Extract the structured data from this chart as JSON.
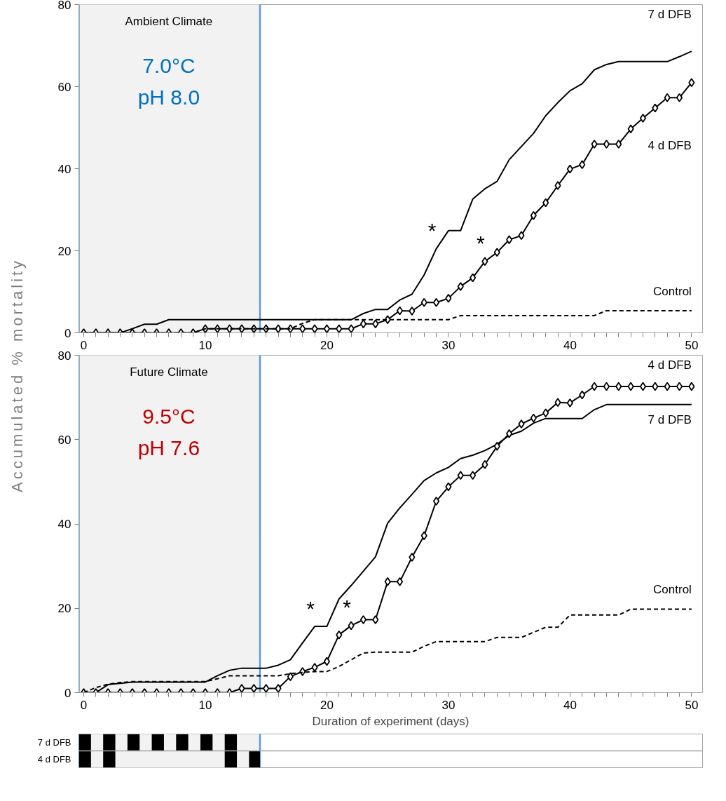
{
  "chart_data": [
    {
      "type": "line",
      "ylabel": "Accumulated % mortality",
      "xlim": [
        -0.4,
        50.9
      ],
      "ylim": [
        0,
        80
      ],
      "yticks": [
        0,
        20,
        40,
        60,
        80
      ],
      "xticks": [
        0,
        {
          "value": 1,
          "label": null
        },
        {
          "value": 2,
          "label": null
        },
        {
          "value": 3,
          "label": null
        },
        {
          "value": 4,
          "label": null
        },
        {
          "value": 5,
          "label": null
        },
        {
          "value": 6,
          "label": null
        },
        {
          "value": 7,
          "label": null
        },
        {
          "value": 8,
          "label": null
        },
        {
          "value": 9,
          "label": null
        },
        10,
        {
          "value": 11,
          "label": null
        },
        {
          "value": 12,
          "label": null
        },
        {
          "value": 13,
          "label": null
        },
        {
          "value": 14,
          "label": null
        },
        {
          "value": 15,
          "label": null
        },
        {
          "value": 16,
          "label": null
        },
        {
          "value": 17,
          "label": null
        },
        {
          "value": 18,
          "label": null
        },
        {
          "value": 19,
          "label": null
        },
        20,
        {
          "value": 21,
          "label": null
        },
        {
          "value": 22,
          "label": null
        },
        {
          "value": 23,
          "label": null
        },
        {
          "value": 24,
          "label": null
        },
        {
          "value": 25,
          "label": null
        },
        {
          "value": 26,
          "label": null
        },
        {
          "value": 27,
          "label": null
        },
        {
          "value": 28,
          "label": null
        },
        {
          "value": 29,
          "label": null
        },
        30,
        {
          "value": 31,
          "label": null
        },
        {
          "value": 32,
          "label": null
        },
        {
          "value": 33,
          "label": null
        },
        {
          "value": 34,
          "label": null
        },
        {
          "value": 35,
          "label": null
        },
        {
          "value": 36,
          "label": null
        },
        {
          "value": 37,
          "label": null
        },
        {
          "value": 38,
          "label": null
        },
        {
          "value": 39,
          "label": null
        },
        40,
        {
          "value": 41,
          "label": null
        },
        {
          "value": 42,
          "label": null
        },
        {
          "value": 43,
          "label": null
        },
        {
          "value": 44,
          "label": null
        },
        {
          "value": 45,
          "label": null
        },
        {
          "value": 46,
          "label": null
        },
        {
          "value": 47,
          "label": null
        },
        {
          "value": 48,
          "label": null
        },
        {
          "value": 49,
          "label": null
        },
        50
      ],
      "x": [
        0,
        1,
        2,
        3,
        4,
        5,
        6,
        7,
        8,
        9,
        10,
        11,
        12,
        13,
        14,
        15,
        16,
        17,
        18,
        19,
        20,
        21,
        22,
        23,
        24,
        25,
        26,
        27,
        28,
        29,
        30,
        31,
        32,
        33,
        34,
        35,
        36,
        37,
        38,
        39,
        40,
        41,
        42,
        43,
        44,
        45,
        46,
        47,
        48,
        49,
        50
      ],
      "grid": false,
      "bands": [
        {
          "axis": "x",
          "from": -0.4,
          "to": 14.5,
          "color": "#f2f2f2"
        }
      ],
      "annotations": [
        "Ambient Climate",
        "7.0°C",
        "pH 8.0",
        "*",
        "*"
      ],
      "series": [
        {
          "name": "7 d DFB",
          "color": "#000000",
          "marker": "none",
          "line_style": "solid",
          "values": [
            0,
            0,
            0,
            0,
            1.0,
            2.1,
            2.1,
            3.2,
            3.2,
            3.2,
            3.2,
            3.2,
            3.2,
            3.2,
            3.2,
            3.2,
            3.2,
            3.2,
            3.2,
            3.2,
            3.2,
            3.2,
            3.2,
            4.7,
            5.7,
            5.7,
            8.0,
            9.4,
            14.1,
            20.5,
            24.9,
            24.9,
            32.6,
            35.1,
            36.9,
            42.2,
            45.4,
            48.6,
            52.9,
            56.1,
            59.0,
            60.7,
            64.1,
            65.4,
            66.1,
            66.1,
            66.1,
            66.1,
            66.1,
            67.3,
            68.6
          ]
        },
        {
          "name": "4 d DFB",
          "color": "#000000",
          "marker": "diamond",
          "line_style": "solid",
          "values": [
            0,
            0,
            0,
            0,
            0,
            0,
            0,
            0,
            0,
            0,
            1,
            1,
            1,
            1,
            1,
            1,
            1,
            1,
            1,
            1,
            1,
            1,
            1,
            2.2,
            2.2,
            3.2,
            5.4,
            5.3,
            7.4,
            7.4,
            8.4,
            11.3,
            13.4,
            17.4,
            19.6,
            22.7,
            23.7,
            28.6,
            31.7,
            35.9,
            39.9,
            41.0,
            46.0,
            46.0,
            46.0,
            49.7,
            52.3,
            54.8,
            57.3,
            57.3,
            61.0
          ]
        },
        {
          "name": "Control",
          "color": "#000000",
          "marker": "none",
          "line_style": "dashed",
          "values": [
            0,
            0,
            0,
            0,
            0,
            0,
            0,
            0,
            0,
            0,
            1,
            1,
            1,
            1,
            1,
            1,
            1,
            1,
            2.3,
            3.2,
            3.2,
            3.2,
            3.2,
            3.2,
            3.2,
            3.2,
            3.2,
            3.2,
            3.2,
            3.2,
            3.2,
            4.2,
            4.2,
            4.2,
            4.2,
            4.2,
            4.2,
            4.2,
            4.2,
            4.2,
            4.2,
            4.2,
            4.2,
            5.4,
            5.4,
            5.4,
            5.4,
            5.4,
            5.4,
            5.4,
            5.4
          ]
        }
      ]
    },
    {
      "type": "line",
      "xlabel": "Duration of experiment (days)",
      "xlim": [
        -0.4,
        50.9
      ],
      "ylim": [
        0,
        80
      ],
      "yticks": [
        0,
        20,
        40,
        60,
        80
      ],
      "xticks": [
        0,
        {
          "value": 1,
          "label": null
        },
        {
          "value": 2,
          "label": null
        },
        {
          "value": 3,
          "label": null
        },
        {
          "value": 4,
          "label": null
        },
        {
          "value": 5,
          "label": null
        },
        {
          "value": 6,
          "label": null
        },
        {
          "value": 7,
          "label": null
        },
        {
          "value": 8,
          "label": null
        },
        {
          "value": 9,
          "label": null
        },
        10,
        {
          "value": 11,
          "label": null
        },
        {
          "value": 12,
          "label": null
        },
        {
          "value": 13,
          "label": null
        },
        {
          "value": 14,
          "label": null
        },
        {
          "value": 15,
          "label": null
        },
        {
          "value": 16,
          "label": null
        },
        {
          "value": 17,
          "label": null
        },
        {
          "value": 18,
          "label": null
        },
        {
          "value": 19,
          "label": null
        },
        20,
        {
          "value": 21,
          "label": null
        },
        {
          "value": 22,
          "label": null
        },
        {
          "value": 23,
          "label": null
        },
        {
          "value": 24,
          "label": null
        },
        {
          "value": 25,
          "label": null
        },
        {
          "value": 26,
          "label": null
        },
        {
          "value": 27,
          "label": null
        },
        {
          "value": 28,
          "label": null
        },
        {
          "value": 29,
          "label": null
        },
        30,
        {
          "value": 31,
          "label": null
        },
        {
          "value": 32,
          "label": null
        },
        {
          "value": 33,
          "label": null
        },
        {
          "value": 34,
          "label": null
        },
        {
          "value": 35,
          "label": null
        },
        {
          "value": 36,
          "label": null
        },
        {
          "value": 37,
          "label": null
        },
        {
          "value": 38,
          "label": null
        },
        {
          "value": 39,
          "label": null
        },
        40,
        {
          "value": 41,
          "label": null
        },
        {
          "value": 42,
          "label": null
        },
        {
          "value": 43,
          "label": null
        },
        {
          "value": 44,
          "label": null
        },
        {
          "value": 45,
          "label": null
        },
        {
          "value": 46,
          "label": null
        },
        {
          "value": 47,
          "label": null
        },
        {
          "value": 48,
          "label": null
        },
        {
          "value": 49,
          "label": null
        },
        50
      ],
      "x": [
        0,
        1,
        2,
        3,
        4,
        5,
        6,
        7,
        8,
        9,
        10,
        11,
        12,
        13,
        14,
        15,
        16,
        17,
        18,
        19,
        20,
        21,
        22,
        23,
        24,
        25,
        26,
        27,
        28,
        29,
        30,
        31,
        32,
        33,
        34,
        35,
        36,
        37,
        38,
        39,
        40,
        41,
        42,
        43,
        44,
        45,
        46,
        47,
        48,
        49,
        50
      ],
      "grid": false,
      "bands": [
        {
          "axis": "x",
          "from": -0.4,
          "to": 14.5,
          "color": "#f2f2f2"
        }
      ],
      "annotations": [
        "Future Climate",
        "9.5°C",
        "pH 7.6",
        "*",
        "*"
      ],
      "series": [
        {
          "name": "7 d DFB",
          "color": "#000000",
          "marker": "none",
          "line_style": "solid",
          "values": [
            0,
            0,
            1.9,
            2.2,
            2.5,
            2.5,
            2.5,
            2.5,
            2.5,
            2.5,
            2.5,
            4.0,
            5.3,
            5.8,
            5.8,
            5.8,
            6.5,
            7.8,
            11.8,
            15.7,
            15.7,
            22.2,
            25.4,
            28.8,
            32.2,
            40.2,
            43.8,
            47.0,
            50.3,
            52.1,
            53.4,
            55.5,
            56.3,
            57.4,
            58.9,
            61.0,
            62.0,
            63.9,
            65.0,
            65.0,
            65.0,
            65.0,
            67.1,
            68.3,
            68.3,
            68.3,
            68.3,
            68.3,
            68.3,
            68.3,
            68.3
          ]
        },
        {
          "name": "4 d DFB",
          "color": "#000000",
          "marker": "diamond",
          "line_style": "solid",
          "values": [
            0,
            0,
            0,
            0,
            0,
            0,
            0,
            0,
            0,
            0,
            0,
            0,
            0,
            1.0,
            1.0,
            1.0,
            1.0,
            3.8,
            5.0,
            6.0,
            7.4,
            13.7,
            15.9,
            17.3,
            17.3,
            26.3,
            26.3,
            32.1,
            37.2,
            45.4,
            48.8,
            51.5,
            51.5,
            54.1,
            58.4,
            61.4,
            63.7,
            65.1,
            66.3,
            68.8,
            68.7,
            70.6,
            72.6,
            72.6,
            72.6,
            72.6,
            72.6,
            72.6,
            72.6,
            72.6,
            72.6
          ]
        },
        {
          "name": "Control",
          "color": "#000000",
          "marker": "none",
          "line_style": "dashed",
          "values": [
            0,
            1.2,
            2.0,
            2.4,
            2.6,
            2.6,
            2.6,
            2.6,
            2.6,
            2.6,
            2.6,
            3.3,
            4.0,
            4.0,
            4.0,
            4.0,
            4.0,
            4.5,
            4.8,
            5.0,
            5.0,
            6.2,
            7.8,
            9.4,
            9.6,
            9.6,
            9.6,
            9.6,
            11.0,
            12.1,
            12.1,
            12.1,
            12.1,
            12.1,
            13.1,
            13.1,
            13.1,
            14.3,
            15.5,
            15.5,
            18.4,
            18.4,
            18.4,
            18.4,
            18.4,
            19.8,
            19.8,
            19.8,
            19.8,
            19.8,
            19.8
          ]
        }
      ]
    },
    {
      "type": "bar",
      "orientation": "horizontal",
      "categories": [
        "7 d DFB",
        "4 d DFB"
      ],
      "xlim": [
        -0.4,
        50.9
      ],
      "tick_labels": "y",
      "grid": false,
      "bands": [
        {
          "axis": "x",
          "from": -0.4,
          "to": 14.5,
          "color": "#f2f2f2"
        }
      ],
      "series": [
        {
          "color": "#000000",
          "base": [
            -0.4,
            -0.4
          ],
          "values": [
            1.0,
            1.0
          ]
        },
        {
          "color": "#000000",
          "base": [
            1.6,
            1.6
          ],
          "values": [
            1.0,
            1.0
          ]
        },
        {
          "color": "#000000",
          "base": [
            3.6,
            null
          ],
          "values": [
            1.0,
            null
          ]
        },
        {
          "color": "#000000",
          "base": [
            5.6,
            null
          ],
          "values": [
            1.0,
            null
          ]
        },
        {
          "color": "#000000",
          "base": [
            7.6,
            null
          ],
          "values": [
            1.0,
            null
          ]
        },
        {
          "color": "#000000",
          "base": [
            9.6,
            null
          ],
          "values": [
            1.0,
            null
          ]
        },
        {
          "color": "#000000",
          "base": [
            11.6,
            11.6
          ],
          "values": [
            1.0,
            1.0
          ]
        },
        {
          "color": "#000000",
          "base": [
            null,
            13.6
          ],
          "values": [
            null,
            0.9
          ]
        }
      ]
    }
  ]
}
